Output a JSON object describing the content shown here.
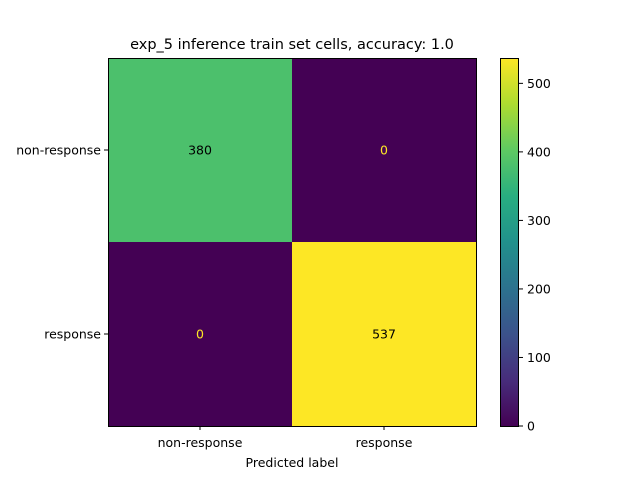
{
  "chart_data": {
    "type": "heatmap",
    "title": "exp_5 inference train set cells, accuracy: 1.0",
    "xlabel": "Predicted label",
    "ylabel": "",
    "x_categories": [
      "non-response",
      "response"
    ],
    "y_categories": [
      "non-response",
      "response"
    ],
    "values": [
      [
        380,
        0
      ],
      [
        0,
        537
      ]
    ],
    "colormap": "viridis",
    "colorbar": {
      "min": 0,
      "max": 537,
      "ticks": [
        0,
        100,
        200,
        300,
        400,
        500
      ]
    },
    "text_colors": {
      "on_light": "#000000",
      "on_dark": "#fde725"
    }
  }
}
